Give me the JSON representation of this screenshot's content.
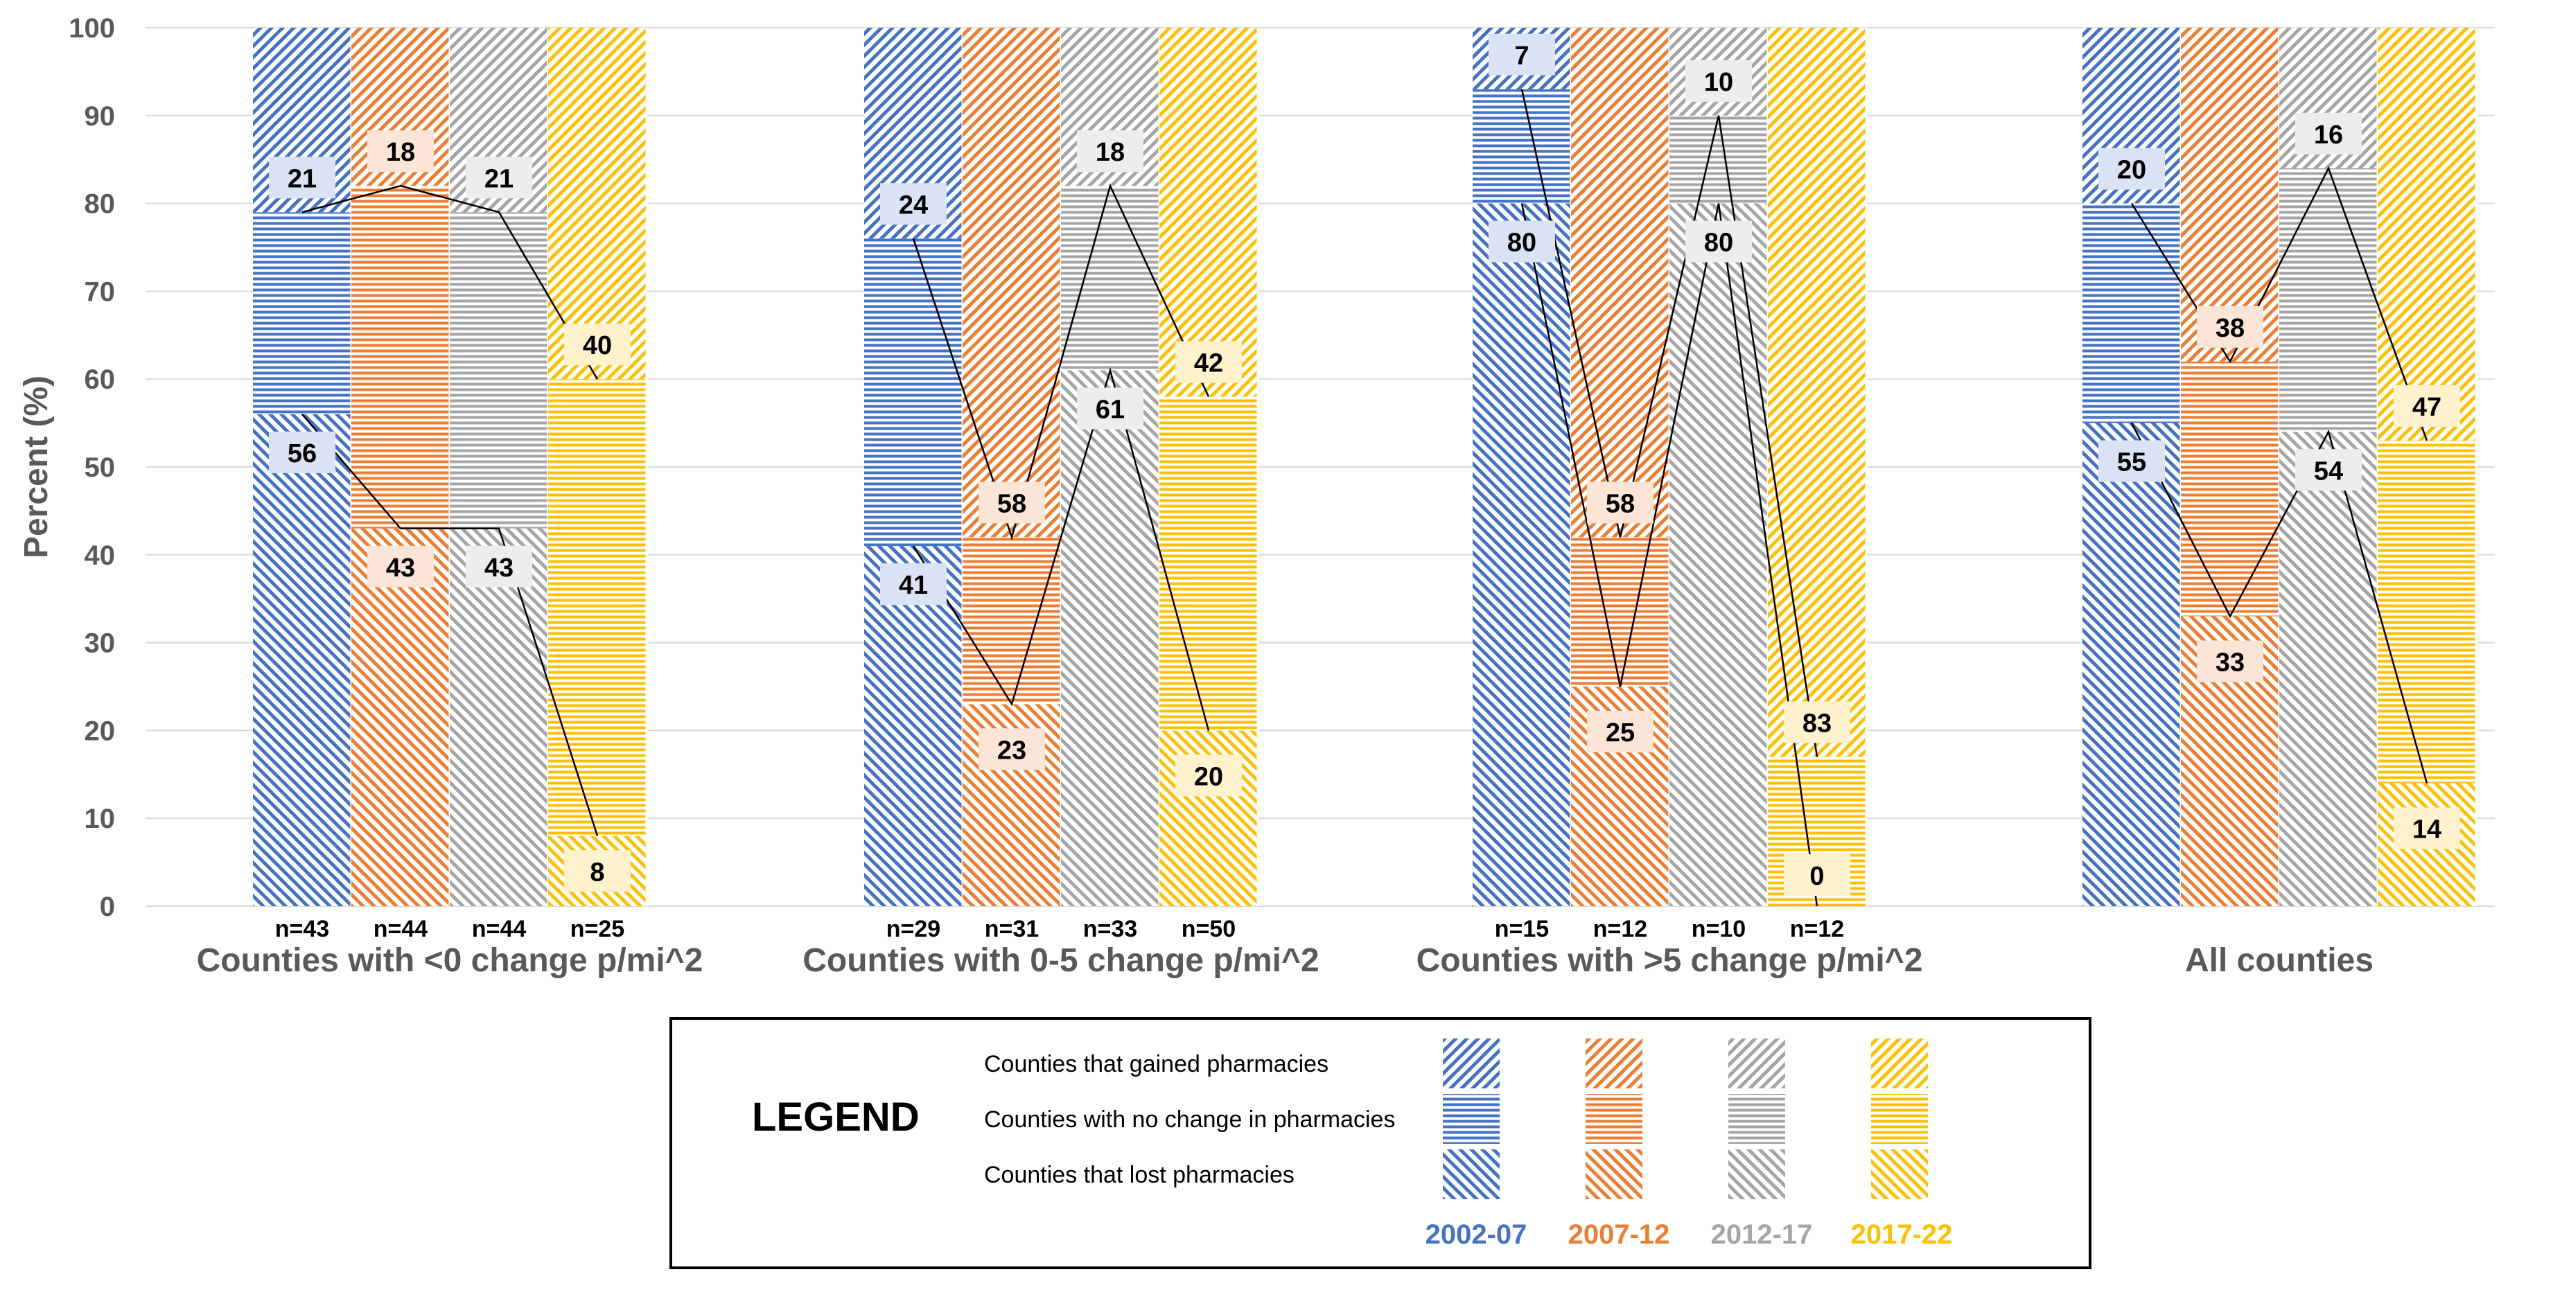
{
  "chart_data": {
    "type": "bar",
    "stacked": true,
    "ylabel": "Percent (%)",
    "ylim": [
      0,
      100
    ],
    "yticks": [
      0,
      10,
      20,
      30,
      40,
      50,
      60,
      70,
      80,
      90,
      100
    ],
    "grid": true,
    "periods": [
      {
        "name": "2002-07",
        "color": "#4472C4",
        "label_bg": "#DAE3F3"
      },
      {
        "name": "2007-12",
        "color": "#ED7D31",
        "label_bg": "#FBE5D6"
      },
      {
        "name": "2012-17",
        "color": "#A5A5A5",
        "label_bg": "#EDEDED"
      },
      {
        "name": "2017-22",
        "color": "#FFC000",
        "label_bg": "#FFF2CC"
      }
    ],
    "statuses": [
      "Counties that gained pharmacies",
      "Counties with no change in pharmacies",
      "Counties that lost pharmacies"
    ],
    "groups": [
      {
        "category": "Counties with <0 change p/mi^2",
        "bars": [
          {
            "n": "n=43",
            "lost": 56,
            "nochange": 23,
            "gained": 21
          },
          {
            "n": "n=44",
            "lost": 43,
            "nochange": 39,
            "gained": 18
          },
          {
            "n": "n=44",
            "lost": 43,
            "nochange": 36,
            "gained": 21
          },
          {
            "n": "n=25",
            "lost": 8,
            "nochange": 52,
            "gained": 40
          }
        ]
      },
      {
        "category": "Counties with 0-5 change p/mi^2",
        "bars": [
          {
            "n": "n=29",
            "lost": 41,
            "nochange": 35,
            "gained": 24
          },
          {
            "n": "n=31",
            "lost": 23,
            "nochange": 19,
            "gained": 58
          },
          {
            "n": "n=33",
            "lost": 61,
            "nochange": 21,
            "gained": 18
          },
          {
            "n": "n=50",
            "lost": 20,
            "nochange": 38,
            "gained": 42
          }
        ]
      },
      {
        "category": "Counties with >5 change p/mi^2",
        "bars": [
          {
            "n": "n=15",
            "lost": 80,
            "nochange": 13,
            "gained": 7
          },
          {
            "n": "n=12",
            "lost": 25,
            "nochange": 17,
            "gained": 58
          },
          {
            "n": "n=10",
            "lost": 80,
            "nochange": 10,
            "gained": 10
          },
          {
            "n": "n=12",
            "lost": 0,
            "nochange": 17,
            "gained": 83
          }
        ]
      },
      {
        "category": "All counties",
        "bars": [
          {
            "n": "",
            "lost": 55,
            "nochange": 25,
            "gained": 20
          },
          {
            "n": "",
            "lost": 33,
            "nochange": 29,
            "gained": 38
          },
          {
            "n": "",
            "lost": 54,
            "nochange": 30,
            "gained": 16
          },
          {
            "n": "",
            "lost": 14,
            "nochange": 39,
            "gained": 47
          }
        ]
      }
    ],
    "legend": {
      "title": "LEGEND",
      "placement": "bottom-center"
    }
  }
}
